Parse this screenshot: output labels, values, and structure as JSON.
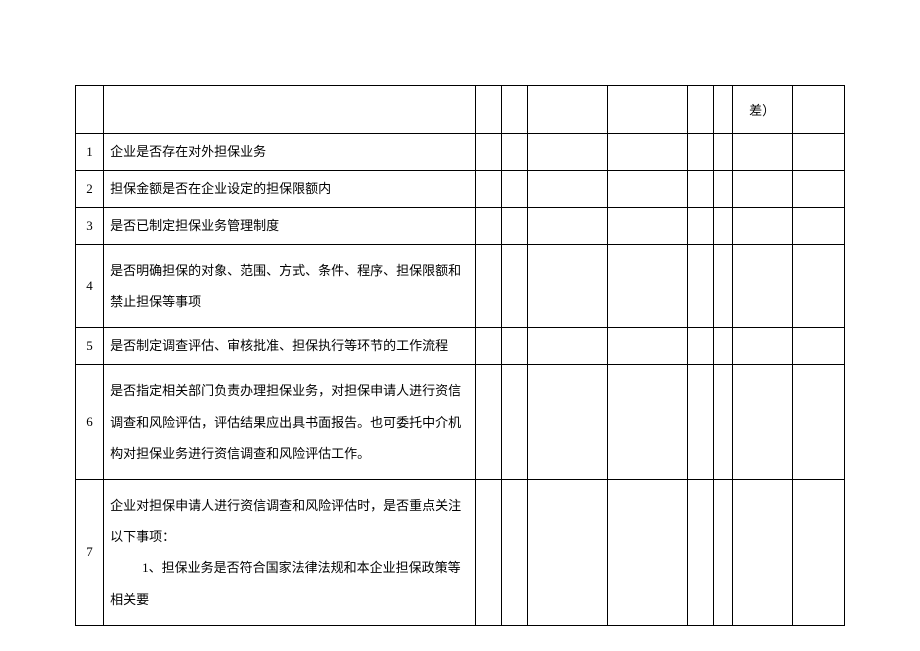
{
  "table": {
    "header": {
      "cha_label": "差）"
    },
    "rows": [
      {
        "num": "1",
        "content": "企业是否存在对外担保业务",
        "multi_line": false
      },
      {
        "num": "2",
        "content": "担保金额是否在企业设定的担保限额内",
        "multi_line": false
      },
      {
        "num": "3",
        "content": "是否已制定担保业务管理制度",
        "multi_line": false
      },
      {
        "num": "4",
        "content": "是否明确担保的对象、范围、方式、条件、程序、担保限额和禁止担保等事项",
        "multi_line": true
      },
      {
        "num": "5",
        "content": "是否制定调查评估、审核批准、担保执行等环节的工作流程",
        "multi_line": false
      },
      {
        "num": "6",
        "content": "是否指定相关部门负责办理担保业务，对担保申请人进行资信调查和风险评估，评估结果应出具书面报告。也可委托中介机构对担保业务进行资信调查和风险评估工作。",
        "multi_line": true
      },
      {
        "num": "7",
        "content": "企业对担保申请人进行资信调查和风险评估时，是否重点关注以下事项：",
        "sub": "1、担保业务是否符合国家法律法规和本企业担保政策等相关要",
        "multi_line": true
      }
    ],
    "styling": {
      "border_color": "#000000",
      "background_color": "#ffffff",
      "font_size": 13,
      "font_family": "SimSun",
      "line_height": 2.4
    }
  }
}
